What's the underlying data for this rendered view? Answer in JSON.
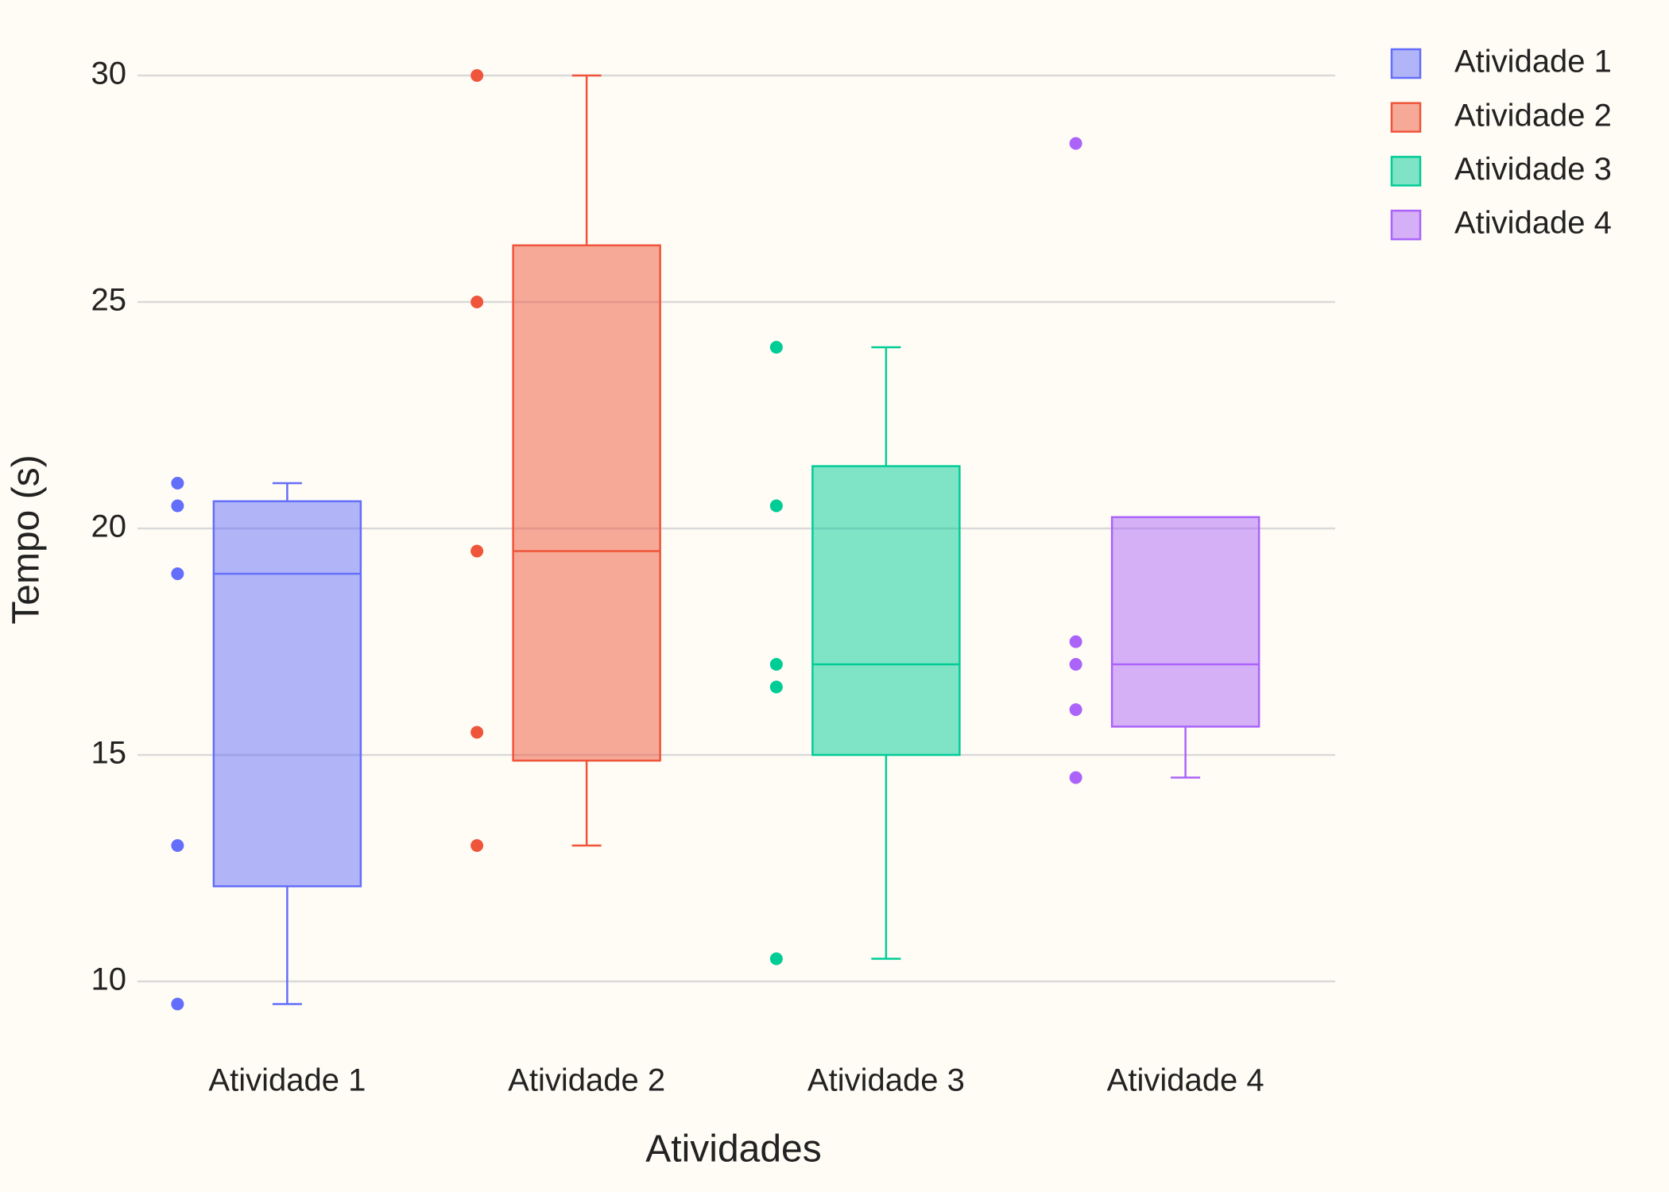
{
  "chart_data": {
    "type": "box",
    "x_label": "Atividades",
    "y_label": "Tempo (s)",
    "categories": [
      "Atividade 1",
      "Atividade 2",
      "Atividade 3",
      "Atividade 4"
    ],
    "ylim": [
      9,
      30.5
    ],
    "yticks": [
      10,
      15,
      20,
      25,
      30
    ],
    "grid": true,
    "legend": "top-right",
    "series": [
      {
        "name": "Atividade 1",
        "color": "#636efa",
        "points": [
          21,
          20.5,
          19,
          13,
          9.5
        ],
        "lowerfence": 9.5,
        "q1": 12.1,
        "median": 19,
        "q3": 20.6,
        "upperfence": 21
      },
      {
        "name": "Atividade 2",
        "color": "#ef553b",
        "points": [
          30,
          25,
          19.5,
          15.5,
          13
        ],
        "lowerfence": 13,
        "q1": 14.875,
        "median": 19.5,
        "q3": 26.25,
        "upperfence": 30
      },
      {
        "name": "Atividade 3",
        "color": "#00cc96",
        "points": [
          24,
          20.5,
          17,
          16.5,
          10.5
        ],
        "lowerfence": 10.5,
        "q1": 15,
        "median": 17,
        "q3": 21.375,
        "upperfence": 24
      },
      {
        "name": "Atividade 4",
        "color": "#ab63fa",
        "points": [
          28.5,
          17.5,
          17,
          16,
          14.5
        ],
        "lowerfence": 14.5,
        "q1": 15.625,
        "median": 17,
        "q3": 20.25,
        "upperfence": 20.25
      }
    ]
  }
}
